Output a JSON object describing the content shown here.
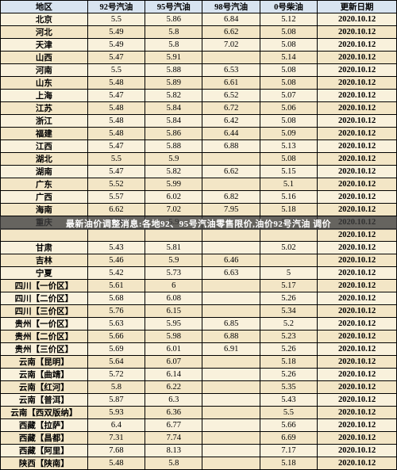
{
  "headers": [
    "地区",
    "92号汽油",
    "95号汽油",
    "98号汽油",
    "0号柴油",
    "更新日期"
  ],
  "rows": [
    [
      "北京",
      "5.5",
      "5.86",
      "6.84",
      "5.12",
      "2020.10.12"
    ],
    [
      "河北",
      "5.49",
      "5.8",
      "6.62",
      "5.08",
      "2020.10.12"
    ],
    [
      "天津",
      "5.49",
      "5.8",
      "7.02",
      "5.08",
      "2020.10.12"
    ],
    [
      "山西",
      "5.47",
      "5.91",
      "",
      "5.14",
      "2020.10.12"
    ],
    [
      "河南",
      "5.5",
      "5.88",
      "6.53",
      "5.08",
      "2020.10.12"
    ],
    [
      "山东",
      "5.48",
      "5.89",
      "6.61",
      "5.08",
      "2020.10.12"
    ],
    [
      "上海",
      "5.47",
      "5.82",
      "6.52",
      "5.07",
      "2020.10.12"
    ],
    [
      "江苏",
      "5.48",
      "5.84",
      "6.72",
      "5.06",
      "2020.10.12"
    ],
    [
      "浙江",
      "5.48",
      "5.84",
      "6.42",
      "5.08",
      "2020.10.12"
    ],
    [
      "福建",
      "5.48",
      "5.86",
      "6.44",
      "5.09",
      "2020.10.12"
    ],
    [
      "江西",
      "5.47",
      "5.88",
      "6.88",
      "5.13",
      "2020.10.12"
    ],
    [
      "湖北",
      "5.5",
      "5.9",
      "",
      "5.08",
      "2020.10.12"
    ],
    [
      "湖南",
      "5.47",
      "5.82",
      "6.62",
      "5.15",
      "2020.10.12"
    ],
    [
      "广东",
      "5.52",
      "5.99",
      "",
      "5.1",
      "2020.10.12"
    ],
    [
      "广西",
      "5.57",
      "6.02",
      "6.82",
      "5.16",
      "2020.10.12"
    ],
    [
      "海南",
      "6.62",
      "7.02",
      "7.95",
      "5.18",
      "2020.10.12"
    ],
    [
      "重庆",
      "5.58",
      "5.9",
      "",
      "5.18",
      "2020.10.12"
    ],
    [
      "",
      "",
      "",
      "",
      "",
      "2020.10.12"
    ],
    [
      "甘肃",
      "5.43",
      "5.81",
      "",
      "5.02",
      "2020.10.12"
    ],
    [
      "吉林",
      "5.46",
      "5.9",
      "6.46",
      "",
      "2020.10.12"
    ],
    [
      "宁夏",
      "5.42",
      "5.73",
      "6.63",
      "5",
      "2020.10.12"
    ],
    [
      "四川【一价区】",
      "5.61",
      "6",
      "",
      "5.17",
      "2020.10.12"
    ],
    [
      "四川【二价区】",
      "5.68",
      "6.08",
      "",
      "5.26",
      "2020.10.12"
    ],
    [
      "四川【三价区】",
      "5.76",
      "6.15",
      "",
      "5.34",
      "2020.10.12"
    ],
    [
      "贵州【一价区】",
      "5.63",
      "5.95",
      "6.85",
      "5.2",
      "2020.10.12"
    ],
    [
      "贵州【二价区】",
      "5.66",
      "5.98",
      "6.88",
      "5.23",
      "2020.10.12"
    ],
    [
      "贵州【三价区】",
      "5.69",
      "6.01",
      "6.91",
      "5.26",
      "2020.10.12"
    ],
    [
      "云南【昆明】",
      "5.64",
      "6.07",
      "",
      "5.18",
      "2020.10.12"
    ],
    [
      "云南【曲靖】",
      "5.72",
      "6.14",
      "",
      "5.26",
      "2020.10.12"
    ],
    [
      "云南【红河】",
      "5.8",
      "6.22",
      "",
      "5.35",
      "2020.10.12"
    ],
    [
      "云南【普洱】",
      "5.87",
      "6.3",
      "",
      "5.43",
      "2020.10.12"
    ],
    [
      "云南【西双版纳】",
      "5.93",
      "6.36",
      "",
      "5.5",
      "2020.10.12"
    ],
    [
      "西藏【拉萨】",
      "6.4",
      "6.77",
      "",
      "5.66",
      "2020.10.12"
    ],
    [
      "西藏【昌都】",
      "7.31",
      "7.74",
      "",
      "6.69",
      "2020.10.12"
    ],
    [
      "西藏【阿里】",
      "7.68",
      "8.13",
      "",
      "7.17",
      "2020.10.12"
    ],
    [
      "陕西【陕南】",
      "5.48",
      "5.8",
      "",
      "5.18",
      "2020.10.12"
    ]
  ],
  "overlay_text": "最新油价调整消息:各地92、95号汽油零售限价,油价92号汽油 调价",
  "style": {
    "header_bg": "#d8e4f0",
    "row_odd_bg": "#f9f1dc",
    "row_even_bg": "#f3e6c6",
    "border_color": "#000000",
    "overlay_bg": "rgba(60,60,60,0.78)",
    "overlay_color": "#ffffff",
    "font_family": "SimSun",
    "header_fontsize": 10.5,
    "cell_fontsize": 10.5
  }
}
